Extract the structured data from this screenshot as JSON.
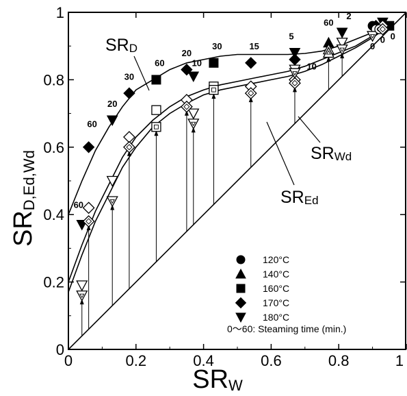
{
  "chart_data": {
    "type": "scatter",
    "xlabel": "SRW",
    "xlabel_main": "SR",
    "xlabel_sub": "W",
    "ylabel_main": "SR",
    "ylabel_sub": "D,Ed,Wd",
    "xlim": [
      0,
      1
    ],
    "ylim": [
      0,
      1
    ],
    "x_ticks": [
      "0",
      "0.2",
      "0.4",
      "0.6",
      "0.8",
      "1"
    ],
    "y_ticks": [
      "0",
      "0.2",
      "0.4",
      "0.6",
      "0.8",
      "1"
    ],
    "grid": false,
    "curve_labels": [
      {
        "main": "SR",
        "sub": "D"
      },
      {
        "main": "SR",
        "sub": "Ed"
      },
      {
        "main": "SR",
        "sub": "Wd"
      }
    ],
    "legend": {
      "items": [
        {
          "label": "120°C",
          "marker": "circle"
        },
        {
          "label": "140°C",
          "marker": "triangle-up"
        },
        {
          "label": "160°C",
          "marker": "square"
        },
        {
          "label": "170°C",
          "marker": "diamond"
        },
        {
          "label": "180°C",
          "marker": "triangle-down"
        }
      ],
      "note": "0～60: Steaming time (min.)"
    },
    "series": [
      {
        "name": "SRD",
        "style": "filled",
        "points": [
          {
            "x": 0.04,
            "y": 0.37,
            "m": "triangle-down"
          },
          {
            "x": 0.06,
            "y": 0.6,
            "m": "diamond"
          },
          {
            "x": 0.13,
            "y": 0.68,
            "m": "triangle-down"
          },
          {
            "x": 0.18,
            "y": 0.76,
            "m": "diamond"
          },
          {
            "x": 0.26,
            "y": 0.8,
            "m": "square"
          },
          {
            "x": 0.35,
            "y": 0.83,
            "m": "diamond"
          },
          {
            "x": 0.37,
            "y": 0.81,
            "m": "triangle-down"
          },
          {
            "x": 0.43,
            "y": 0.85,
            "m": "square"
          },
          {
            "x": 0.54,
            "y": 0.85,
            "m": "diamond"
          },
          {
            "x": 0.67,
            "y": 0.88,
            "m": "triangle-down"
          },
          {
            "x": 0.67,
            "y": 0.86,
            "m": "diamond"
          },
          {
            "x": 0.77,
            "y": 0.91,
            "m": "triangle-up"
          },
          {
            "x": 0.81,
            "y": 0.94,
            "m": "triangle-down"
          },
          {
            "x": 0.9,
            "y": 0.96,
            "m": "circle"
          },
          {
            "x": 0.91,
            "y": 0.96,
            "m": "diamond"
          },
          {
            "x": 0.93,
            "y": 0.97,
            "m": "triangle-down"
          },
          {
            "x": 0.95,
            "y": 0.96,
            "m": "square"
          }
        ]
      },
      {
        "name": "SREd",
        "style": "open",
        "points": [
          {
            "x": 0.06,
            "y": 0.42,
            "m": "diamond"
          },
          {
            "x": 0.18,
            "y": 0.63,
            "m": "diamond"
          },
          {
            "x": 0.26,
            "y": 0.71,
            "m": "square"
          },
          {
            "x": 0.35,
            "y": 0.74,
            "m": "diamond"
          },
          {
            "x": 0.37,
            "y": 0.7,
            "m": "triangle-down"
          },
          {
            "x": 0.43,
            "y": 0.78,
            "m": "square"
          },
          {
            "x": 0.54,
            "y": 0.78,
            "m": "diamond"
          },
          {
            "x": 0.67,
            "y": 0.8,
            "m": "diamond"
          },
          {
            "x": 0.67,
            "y": 0.83,
            "m": "triangle-down"
          },
          {
            "x": 0.77,
            "y": 0.89,
            "m": "triangle-up"
          },
          {
            "x": 0.81,
            "y": 0.91,
            "m": "triangle-down"
          },
          {
            "x": 0.04,
            "y": 0.19,
            "m": "triangle-down"
          },
          {
            "x": 0.13,
            "y": 0.5,
            "m": "triangle-down"
          },
          {
            "x": 0.91,
            "y": 0.95,
            "m": "circle"
          },
          {
            "x": 0.93,
            "y": 0.96,
            "m": "diamond"
          }
        ]
      },
      {
        "name": "SRWd",
        "style": "dotted-open",
        "points": [
          {
            "x": 0.04,
            "y": 0.16,
            "m": "triangle-down"
          },
          {
            "x": 0.06,
            "y": 0.38,
            "m": "diamond"
          },
          {
            "x": 0.13,
            "y": 0.44,
            "m": "triangle-down"
          },
          {
            "x": 0.18,
            "y": 0.6,
            "m": "diamond"
          },
          {
            "x": 0.26,
            "y": 0.66,
            "m": "square"
          },
          {
            "x": 0.35,
            "y": 0.72,
            "m": "diamond"
          },
          {
            "x": 0.37,
            "y": 0.67,
            "m": "triangle-down"
          },
          {
            "x": 0.43,
            "y": 0.77,
            "m": "square"
          },
          {
            "x": 0.54,
            "y": 0.76,
            "m": "diamond"
          },
          {
            "x": 0.67,
            "y": 0.79,
            "m": "diamond"
          },
          {
            "x": 0.67,
            "y": 0.82,
            "m": "triangle-down"
          },
          {
            "x": 0.77,
            "y": 0.88,
            "m": "triangle-up"
          },
          {
            "x": 0.81,
            "y": 0.89,
            "m": "triangle-down"
          },
          {
            "x": 0.9,
            "y": 0.93,
            "m": "triangle-down"
          },
          {
            "x": 0.92,
            "y": 0.95,
            "m": "circle"
          },
          {
            "x": 0.93,
            "y": 0.95,
            "m": "diamond"
          }
        ]
      }
    ],
    "point_labels": [
      {
        "text": "60",
        "x": 0.07,
        "y": 0.66
      },
      {
        "text": "60",
        "x": 0.03,
        "y": 0.42
      },
      {
        "text": "20",
        "x": 0.13,
        "y": 0.72
      },
      {
        "text": "30",
        "x": 0.18,
        "y": 0.8
      },
      {
        "text": "60",
        "x": 0.27,
        "y": 0.84
      },
      {
        "text": "20",
        "x": 0.35,
        "y": 0.87
      },
      {
        "text": "10",
        "x": 0.38,
        "y": 0.84
      },
      {
        "text": "30",
        "x": 0.44,
        "y": 0.89
      },
      {
        "text": "15",
        "x": 0.55,
        "y": 0.89
      },
      {
        "text": "5",
        "x": 0.66,
        "y": 0.92
      },
      {
        "text": "10",
        "x": 0.72,
        "y": 0.83
      },
      {
        "text": "60",
        "x": 0.77,
        "y": 0.96
      },
      {
        "text": "2",
        "x": 0.83,
        "y": 0.98
      },
      {
        "text": "0",
        "x": 0.9,
        "y": 0.89
      },
      {
        "text": "0",
        "x": 0.93,
        "y": 0.91
      },
      {
        "text": "0",
        "x": 0.96,
        "y": 0.92
      }
    ],
    "fit_curves": [
      {
        "name": "SRD",
        "x": [
          0,
          0.04,
          0.08,
          0.12,
          0.16,
          0.2,
          0.25,
          0.3,
          0.35,
          0.4,
          0.45,
          0.5,
          0.55,
          0.6,
          0.65,
          0.7,
          0.75,
          0.8,
          0.85,
          0.9,
          0.95
        ],
        "y": [
          0.4,
          0.5,
          0.59,
          0.66,
          0.72,
          0.77,
          0.8,
          0.83,
          0.85,
          0.86,
          0.87,
          0.875,
          0.875,
          0.875,
          0.875,
          0.878,
          0.885,
          0.9,
          0.92,
          0.94,
          0.96
        ]
      },
      {
        "name": "SREd",
        "x": [
          0,
          0.04,
          0.08,
          0.12,
          0.16,
          0.2,
          0.25,
          0.3,
          0.35,
          0.4,
          0.45,
          0.5,
          0.55,
          0.6,
          0.65,
          0.7,
          0.75,
          0.8,
          0.85,
          0.9,
          0.95
        ],
        "y": [
          0.2,
          0.31,
          0.41,
          0.49,
          0.57,
          0.63,
          0.68,
          0.72,
          0.75,
          0.77,
          0.785,
          0.795,
          0.805,
          0.815,
          0.825,
          0.84,
          0.86,
          0.88,
          0.9,
          0.93,
          0.96
        ]
      },
      {
        "name": "SRWd",
        "x": [
          0,
          0.04,
          0.08,
          0.12,
          0.16,
          0.2,
          0.25,
          0.3,
          0.35,
          0.4,
          0.45,
          0.5,
          0.55,
          0.6,
          0.65,
          0.7,
          0.75,
          0.8,
          0.85,
          0.9,
          0.95
        ],
        "y": [
          0.17,
          0.28,
          0.38,
          0.46,
          0.54,
          0.6,
          0.66,
          0.7,
          0.73,
          0.755,
          0.77,
          0.78,
          0.79,
          0.8,
          0.81,
          0.825,
          0.845,
          0.87,
          0.895,
          0.925,
          0.96
        ]
      }
    ]
  }
}
